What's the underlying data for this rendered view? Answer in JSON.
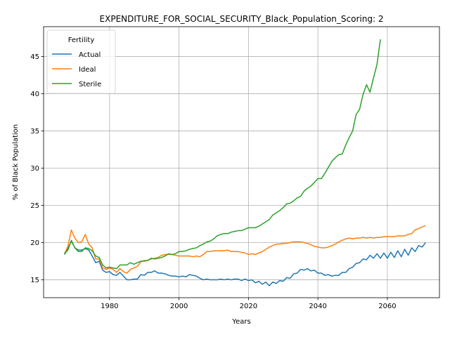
{
  "chart_data": {
    "type": "line",
    "title": "EXPENDITURE_FOR_SOCIAL_SECURITY_Black_Population_Scoring: 2",
    "xlabel": "Years",
    "ylabel": "% of Black Population",
    "xlim": [
      1961,
      2075
    ],
    "ylim": [
      12.6,
      49.0
    ],
    "xticks": [
      1980,
      2000,
      2020,
      2040,
      2060
    ],
    "yticks": [
      15,
      20,
      25,
      30,
      35,
      40,
      45
    ],
    "grid": true,
    "legend": {
      "title": "Fertility",
      "position": "top-left"
    },
    "series": [
      {
        "name": "Actual",
        "color": "#1f77b4",
        "points": [
          [
            1967,
            18.4
          ],
          [
            1968,
            19.2
          ],
          [
            1969,
            20.2
          ],
          [
            1970,
            19.3
          ],
          [
            1971,
            19.0
          ],
          [
            1972,
            19.0
          ],
          [
            1973,
            19.2
          ],
          [
            1974,
            19.0
          ],
          [
            1975,
            18.2
          ],
          [
            1976,
            17.3
          ],
          [
            1977,
            17.5
          ],
          [
            1978,
            16.3
          ],
          [
            1979,
            16.0
          ],
          [
            1980,
            16.1
          ],
          [
            1981,
            15.7
          ],
          [
            1982,
            15.6
          ],
          [
            1983,
            16.0
          ],
          [
            1984,
            15.5
          ],
          [
            1985,
            15.0
          ],
          [
            1986,
            15.0
          ],
          [
            1987,
            15.1
          ],
          [
            1988,
            15.1
          ],
          [
            1989,
            15.7
          ],
          [
            1990,
            15.6
          ],
          [
            1991,
            16.0
          ],
          [
            1992,
            16.0
          ],
          [
            1993,
            16.2
          ],
          [
            1994,
            15.9
          ],
          [
            1995,
            15.9
          ],
          [
            1996,
            15.8
          ],
          [
            1997,
            15.6
          ],
          [
            1998,
            15.5
          ],
          [
            1999,
            15.5
          ],
          [
            2000,
            15.4
          ],
          [
            2001,
            15.5
          ],
          [
            2002,
            15.4
          ],
          [
            2003,
            15.7
          ],
          [
            2004,
            15.6
          ],
          [
            2005,
            15.5
          ],
          [
            2006,
            15.2
          ],
          [
            2007,
            15.0
          ],
          [
            2008,
            15.1
          ],
          [
            2009,
            15.0
          ],
          [
            2010,
            15.0
          ],
          [
            2011,
            15.0
          ],
          [
            2012,
            15.1
          ],
          [
            2013,
            15.0
          ],
          [
            2014,
            15.1
          ],
          [
            2015,
            15.0
          ],
          [
            2016,
            15.1
          ],
          [
            2017,
            15.1
          ],
          [
            2018,
            14.9
          ],
          [
            2019,
            15.1
          ],
          [
            2020,
            14.9
          ],
          [
            2021,
            15.0
          ],
          [
            2022,
            14.6
          ],
          [
            2023,
            14.8
          ],
          [
            2024,
            14.4
          ],
          [
            2025,
            14.7
          ],
          [
            2026,
            14.2
          ],
          [
            2027,
            14.7
          ],
          [
            2028,
            14.5
          ],
          [
            2029,
            14.9
          ],
          [
            2030,
            14.8
          ],
          [
            2031,
            15.3
          ],
          [
            2032,
            15.2
          ],
          [
            2033,
            15.8
          ],
          [
            2034,
            15.9
          ],
          [
            2035,
            16.4
          ],
          [
            2036,
            16.3
          ],
          [
            2037,
            16.5
          ],
          [
            2038,
            16.2
          ],
          [
            2039,
            16.3
          ],
          [
            2040,
            15.9
          ],
          [
            2041,
            15.9
          ],
          [
            2042,
            15.6
          ],
          [
            2043,
            15.7
          ],
          [
            2044,
            15.5
          ],
          [
            2045,
            15.6
          ],
          [
            2046,
            15.6
          ],
          [
            2047,
            16.0
          ],
          [
            2048,
            16.0
          ],
          [
            2049,
            16.5
          ],
          [
            2050,
            16.7
          ],
          [
            2051,
            17.2
          ],
          [
            2052,
            17.3
          ],
          [
            2053,
            17.8
          ],
          [
            2054,
            17.7
          ],
          [
            2055,
            18.3
          ],
          [
            2056,
            17.9
          ],
          [
            2057,
            18.5
          ],
          [
            2058,
            17.9
          ],
          [
            2059,
            18.6
          ],
          [
            2060,
            17.9
          ],
          [
            2061,
            18.7
          ],
          [
            2062,
            18.0
          ],
          [
            2063,
            18.9
          ],
          [
            2064,
            18.1
          ],
          [
            2065,
            19.1
          ],
          [
            2066,
            18.3
          ],
          [
            2067,
            19.3
          ],
          [
            2068,
            18.8
          ],
          [
            2069,
            19.6
          ],
          [
            2070,
            19.4
          ],
          [
            2071,
            20.0
          ]
        ]
      },
      {
        "name": "Ideal",
        "color": "#ff7f0e",
        "points": [
          [
            1967,
            18.5
          ],
          [
            1968,
            19.5
          ],
          [
            1969,
            21.7
          ],
          [
            1970,
            20.6
          ],
          [
            1971,
            20.0
          ],
          [
            1972,
            20.1
          ],
          [
            1973,
            21.1
          ],
          [
            1974,
            19.8
          ],
          [
            1975,
            19.3
          ],
          [
            1976,
            17.8
          ],
          [
            1977,
            17.8
          ],
          [
            1978,
            16.6
          ],
          [
            1979,
            16.4
          ],
          [
            1980,
            16.6
          ],
          [
            1981,
            16.4
          ],
          [
            1982,
            16.0
          ],
          [
            1983,
            16.5
          ],
          [
            1984,
            16.1
          ],
          [
            1985,
            15.9
          ],
          [
            1986,
            16.4
          ],
          [
            1987,
            16.6
          ],
          [
            1988,
            16.8
          ],
          [
            1989,
            17.4
          ],
          [
            1990,
            17.6
          ],
          [
            1991,
            17.6
          ],
          [
            1992,
            17.8
          ],
          [
            1993,
            17.9
          ],
          [
            1994,
            18.0
          ],
          [
            1995,
            18.3
          ],
          [
            1996,
            18.4
          ],
          [
            1997,
            18.4
          ],
          [
            1998,
            18.4
          ],
          [
            1999,
            18.3
          ],
          [
            2000,
            18.2
          ],
          [
            2001,
            18.2
          ],
          [
            2002,
            18.2
          ],
          [
            2003,
            18.2
          ],
          [
            2004,
            18.1
          ],
          [
            2005,
            18.2
          ],
          [
            2006,
            18.1
          ],
          [
            2007,
            18.4
          ],
          [
            2008,
            18.8
          ],
          [
            2009,
            18.8
          ],
          [
            2010,
            18.9
          ],
          [
            2011,
            18.9
          ],
          [
            2012,
            18.9
          ],
          [
            2013,
            18.9
          ],
          [
            2014,
            19.0
          ],
          [
            2015,
            18.8
          ],
          [
            2016,
            18.8
          ],
          [
            2017,
            18.8
          ],
          [
            2018,
            18.7
          ],
          [
            2019,
            18.6
          ],
          [
            2020,
            18.4
          ],
          [
            2021,
            18.5
          ],
          [
            2022,
            18.4
          ],
          [
            2023,
            18.6
          ],
          [
            2024,
            18.8
          ],
          [
            2025,
            19.1
          ],
          [
            2026,
            19.4
          ],
          [
            2027,
            19.6
          ],
          [
            2028,
            19.8
          ],
          [
            2029,
            19.8
          ],
          [
            2030,
            19.9
          ],
          [
            2031,
            19.9
          ],
          [
            2032,
            20.0
          ],
          [
            2033,
            20.1
          ],
          [
            2034,
            20.1
          ],
          [
            2035,
            20.1
          ],
          [
            2036,
            20.0
          ],
          [
            2037,
            19.9
          ],
          [
            2038,
            19.7
          ],
          [
            2039,
            19.5
          ],
          [
            2040,
            19.4
          ],
          [
            2041,
            19.3
          ],
          [
            2042,
            19.3
          ],
          [
            2043,
            19.4
          ],
          [
            2044,
            19.6
          ],
          [
            2045,
            19.8
          ],
          [
            2046,
            20.1
          ],
          [
            2047,
            20.3
          ],
          [
            2048,
            20.5
          ],
          [
            2049,
            20.6
          ],
          [
            2050,
            20.5
          ],
          [
            2051,
            20.6
          ],
          [
            2052,
            20.6
          ],
          [
            2053,
            20.7
          ],
          [
            2054,
            20.6
          ],
          [
            2055,
            20.7
          ],
          [
            2056,
            20.6
          ],
          [
            2057,
            20.7
          ],
          [
            2058,
            20.7
          ],
          [
            2059,
            20.8
          ],
          [
            2060,
            20.8
          ],
          [
            2061,
            20.8
          ],
          [
            2062,
            20.8
          ],
          [
            2063,
            20.9
          ],
          [
            2064,
            20.9
          ],
          [
            2065,
            20.9
          ],
          [
            2066,
            21.1
          ],
          [
            2067,
            21.2
          ],
          [
            2068,
            21.7
          ],
          [
            2069,
            21.9
          ],
          [
            2070,
            22.1
          ],
          [
            2071,
            22.3
          ]
        ]
      },
      {
        "name": "Sterile",
        "color": "#2ca02c",
        "points": [
          [
            1967,
            18.5
          ],
          [
            1968,
            19.0
          ],
          [
            1969,
            20.3
          ],
          [
            1970,
            19.3
          ],
          [
            1971,
            18.8
          ],
          [
            1972,
            18.8
          ],
          [
            1973,
            19.3
          ],
          [
            1974,
            19.2
          ],
          [
            1975,
            18.9
          ],
          [
            1976,
            18.2
          ],
          [
            1977,
            18.0
          ],
          [
            1978,
            17.0
          ],
          [
            1979,
            16.6
          ],
          [
            1980,
            16.7
          ],
          [
            1981,
            16.6
          ],
          [
            1982,
            16.5
          ],
          [
            1983,
            17.0
          ],
          [
            1984,
            17.0
          ],
          [
            1985,
            17.0
          ],
          [
            1986,
            17.3
          ],
          [
            1987,
            17.1
          ],
          [
            1988,
            17.3
          ],
          [
            1989,
            17.5
          ],
          [
            1990,
            17.5
          ],
          [
            1991,
            17.6
          ],
          [
            1992,
            17.9
          ],
          [
            1993,
            17.8
          ],
          [
            1994,
            17.9
          ],
          [
            1995,
            18.0
          ],
          [
            1996,
            18.2
          ],
          [
            1997,
            18.5
          ],
          [
            1998,
            18.4
          ],
          [
            1999,
            18.5
          ],
          [
            2000,
            18.8
          ],
          [
            2001,
            18.8
          ],
          [
            2002,
            18.9
          ],
          [
            2003,
            19.1
          ],
          [
            2004,
            19.2
          ],
          [
            2005,
            19.3
          ],
          [
            2006,
            19.6
          ],
          [
            2007,
            19.8
          ],
          [
            2008,
            20.1
          ],
          [
            2009,
            20.2
          ],
          [
            2010,
            20.5
          ],
          [
            2011,
            20.9
          ],
          [
            2012,
            21.1
          ],
          [
            2013,
            21.2
          ],
          [
            2014,
            21.2
          ],
          [
            2015,
            21.4
          ],
          [
            2016,
            21.5
          ],
          [
            2017,
            21.6
          ],
          [
            2018,
            21.6
          ],
          [
            2019,
            21.8
          ],
          [
            2020,
            22.0
          ],
          [
            2021,
            22.0
          ],
          [
            2022,
            22.0
          ],
          [
            2023,
            22.2
          ],
          [
            2024,
            22.5
          ],
          [
            2025,
            22.8
          ],
          [
            2026,
            23.1
          ],
          [
            2027,
            23.7
          ],
          [
            2028,
            24.0
          ],
          [
            2029,
            24.3
          ],
          [
            2030,
            24.7
          ],
          [
            2031,
            25.2
          ],
          [
            2032,
            25.3
          ],
          [
            2033,
            25.6
          ],
          [
            2034,
            26.0
          ],
          [
            2035,
            26.2
          ],
          [
            2036,
            26.9
          ],
          [
            2037,
            27.3
          ],
          [
            2038,
            27.6
          ],
          [
            2039,
            28.1
          ],
          [
            2040,
            28.6
          ],
          [
            2041,
            28.6
          ],
          [
            2042,
            29.3
          ],
          [
            2043,
            30.1
          ],
          [
            2044,
            30.9
          ],
          [
            2045,
            31.4
          ],
          [
            2046,
            31.8
          ],
          [
            2047,
            31.9
          ],
          [
            2048,
            33.1
          ],
          [
            2049,
            34.1
          ],
          [
            2050,
            35.0
          ],
          [
            2051,
            37.2
          ],
          [
            2052,
            37.9
          ],
          [
            2053,
            39.9
          ],
          [
            2054,
            41.2
          ],
          [
            2055,
            40.2
          ],
          [
            2056,
            42.1
          ],
          [
            2057,
            43.9
          ],
          [
            2058,
            47.3
          ]
        ]
      }
    ]
  }
}
